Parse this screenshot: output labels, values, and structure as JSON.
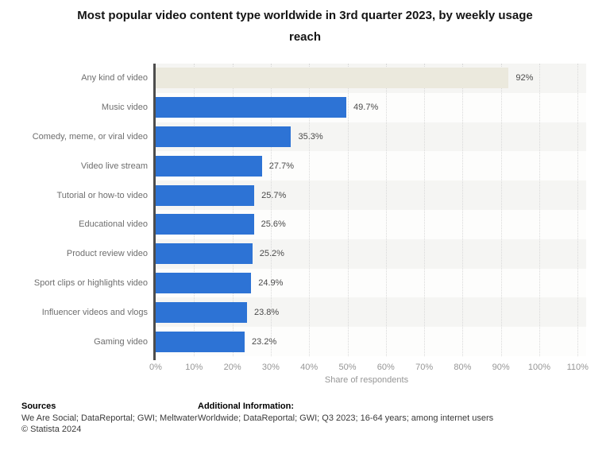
{
  "title": {
    "line1": "Most popular video content type worldwide in 3rd quarter 2023, by weekly usage",
    "line2": "reach"
  },
  "chart_data": {
    "type": "bar",
    "orientation": "horizontal",
    "title": "Most popular video content type worldwide in 3rd quarter 2023, by weekly usage reach",
    "categories": [
      "Any kind of video",
      "Music video",
      "Comedy, meme, or viral video",
      "Video live stream",
      "Tutorial or how-to video",
      "Educational video",
      "Product review video",
      "Sport clips or highlights video",
      "Influencer videos and vlogs",
      "Gaming video"
    ],
    "values": [
      92,
      49.7,
      35.3,
      27.7,
      25.7,
      25.6,
      25.2,
      24.9,
      23.8,
      23.2
    ],
    "value_labels": [
      "92%",
      "49.7%",
      "35.3%",
      "27.7%",
      "25.7%",
      "25.6%",
      "25.2%",
      "24.9%",
      "23.8%",
      "23.2%"
    ],
    "xlabel": "Share of respondents",
    "ylabel": "",
    "x_ticks": [
      "0%",
      "10%",
      "20%",
      "30%",
      "40%",
      "50%",
      "60%",
      "70%",
      "80%",
      "90%",
      "100%",
      "110%"
    ],
    "xlim": [
      0,
      110
    ],
    "grid": "vertical-dotted",
    "legend": "none",
    "bar_color": "#2d73d5",
    "highlight_bar_color": "#ebe9dd",
    "highlight_index": 0
  },
  "footer": {
    "sources_heading": "Sources",
    "sources_text": "We Are Social; DataReportal; GWI; Meltwater",
    "copyright": "© Statista 2024",
    "additional_heading": "Additional Information:",
    "additional_text": "Worldwide; DataReportal; GWI; Q3 2023; 16-64 years; among internet users"
  },
  "colors": {
    "row_band_even": "#f5f5f3",
    "row_band_odd": "#fdfdfc",
    "axis_line": "#4d4d4d",
    "gridline": "#d9d9d9"
  }
}
